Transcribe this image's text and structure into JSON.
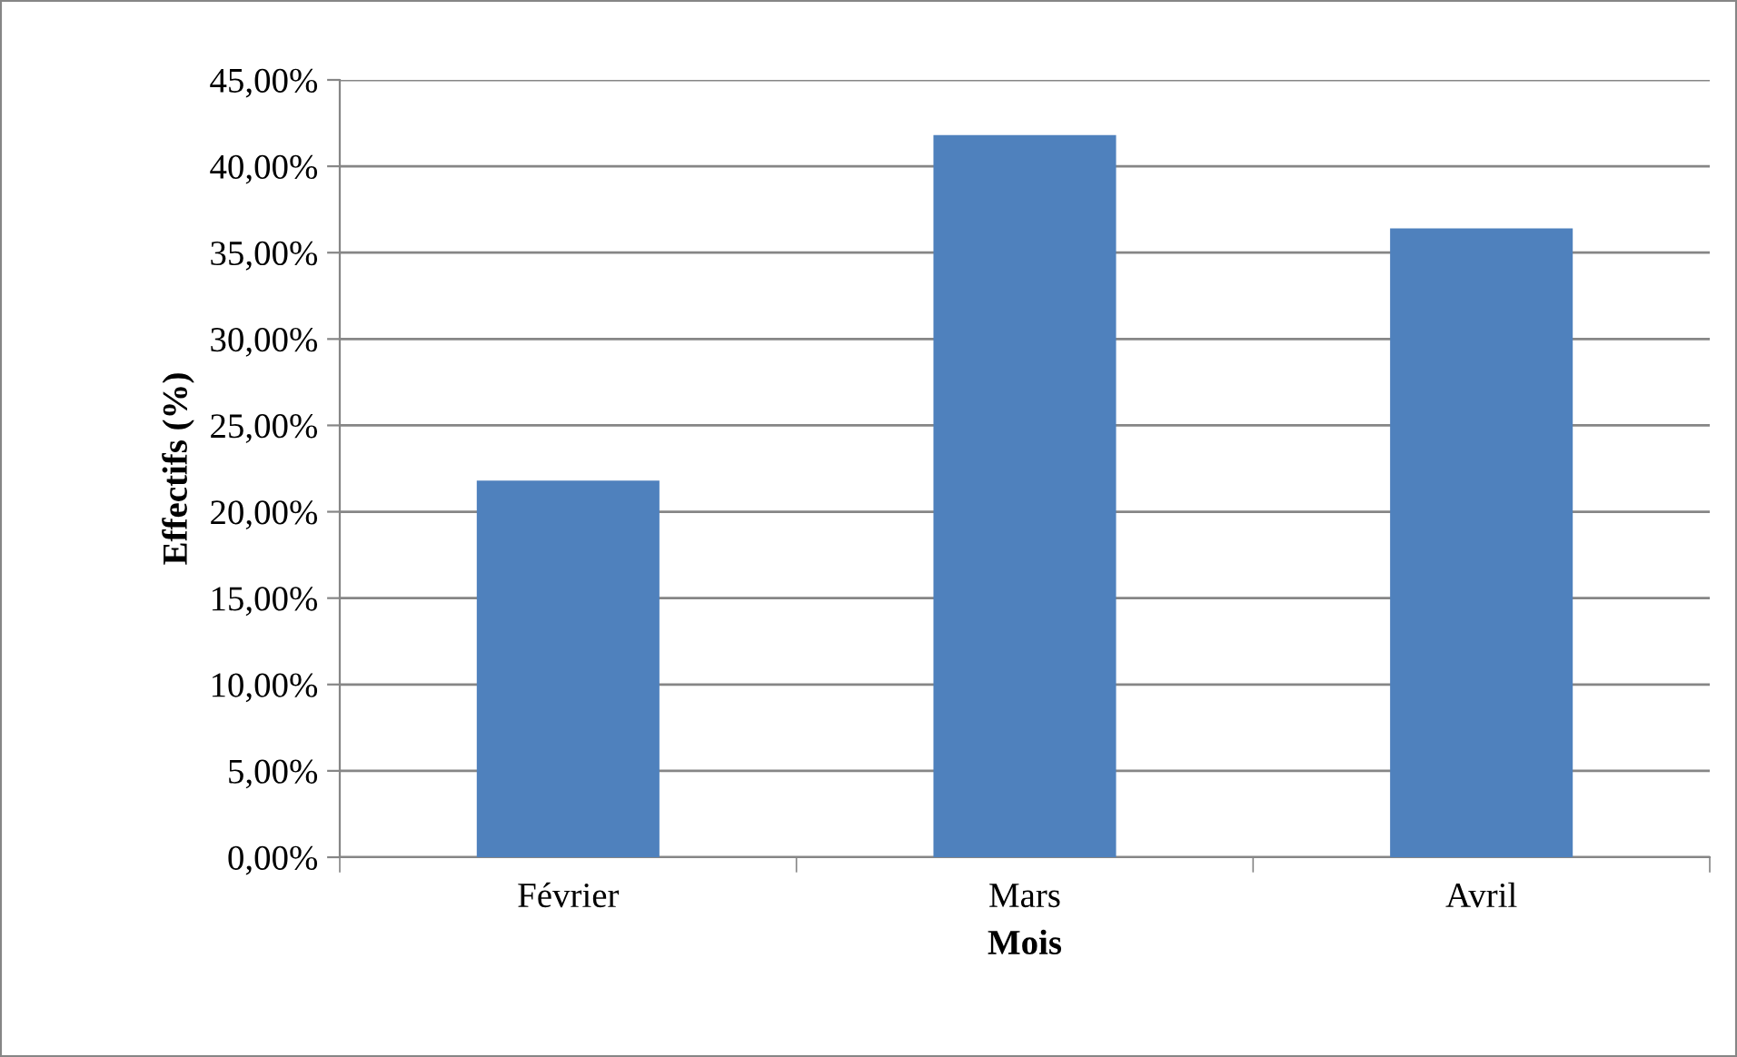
{
  "chart_data": {
    "type": "bar",
    "xlabel": "Mois",
    "ylabel": "Effectifs (%)",
    "categories": [
      "Février",
      "Mars",
      "Avril"
    ],
    "values": [
      21.8,
      41.8,
      36.4
    ],
    "color": "#4f81bd",
    "ylim": [
      0,
      45
    ],
    "yticks": [
      {
        "value": 0,
        "label": "0,00%"
      },
      {
        "value": 5,
        "label": "5,00%"
      },
      {
        "value": 10,
        "label": "10,00%"
      },
      {
        "value": 15,
        "label": "15,00%"
      },
      {
        "value": 20,
        "label": "20,00%"
      },
      {
        "value": 25,
        "label": "25,00%"
      },
      {
        "value": 30,
        "label": "30,00%"
      },
      {
        "value": 35,
        "label": "35,00%"
      },
      {
        "value": 40,
        "label": "40,00%"
      },
      {
        "value": 45,
        "label": "45,00%"
      }
    ],
    "grid": "y",
    "legend": false
  }
}
